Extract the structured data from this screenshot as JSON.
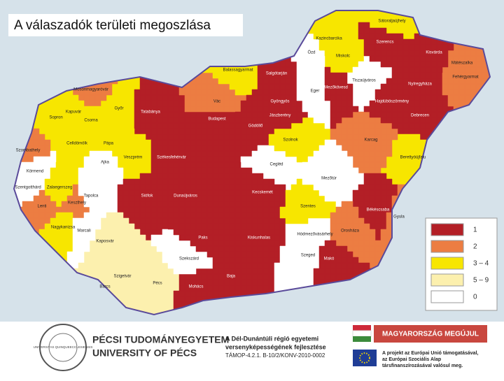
{
  "header": {
    "title": "A válaszadók területi megoszlása"
  },
  "legend": {
    "items": [
      {
        "label": "1",
        "color": "#b31f26"
      },
      {
        "label": "2",
        "color": "#ec7d42"
      },
      {
        "label": "3 – 4",
        "color": "#f7e600"
      },
      {
        "label": "5 – 9",
        "color": "#fcf0ae"
      },
      {
        "label": "0",
        "color": "#ffffff"
      }
    ]
  },
  "regions": [
    {
      "name": "Győr",
      "level": 2
    },
    {
      "name": "Mosonmagyaróvár",
      "level": 1
    },
    {
      "name": "Sopron",
      "level": 2
    },
    {
      "name": "Csorna",
      "level": 2
    },
    {
      "name": "Kapuvár",
      "level": 2
    },
    {
      "name": "Tatabánya",
      "level": 0
    },
    {
      "name": "Pápa",
      "level": 2
    },
    {
      "name": "Celldömölk",
      "level": 2
    },
    {
      "name": "Szombathely",
      "level": 1
    },
    {
      "name": "Körmend",
      "level": 4
    },
    {
      "name": "Szentgotthárd",
      "level": 4
    },
    {
      "name": "Zalaegerszeg",
      "level": 2
    },
    {
      "name": "Keszthely",
      "level": 1
    },
    {
      "name": "Lenti",
      "level": 1
    },
    {
      "name": "Nagykanizsa",
      "level": 2
    },
    {
      "name": "Veszprém",
      "level": 2
    },
    {
      "name": "Ajka",
      "level": 4
    },
    {
      "name": "Tapolca",
      "level": 4
    },
    {
      "name": "Székesfehérvár",
      "level": 0
    },
    {
      "name": "Siófok",
      "level": 0
    },
    {
      "name": "Kaposvár",
      "level": 3
    },
    {
      "name": "Marcali",
      "level": 4
    },
    {
      "name": "Barcs",
      "level": 3
    },
    {
      "name": "Szigetvár",
      "level": 3
    },
    {
      "name": "Pécs",
      "level": 3
    },
    {
      "name": "Mohács",
      "level": 0
    },
    {
      "name": "Szekszárd",
      "level": 4
    },
    {
      "name": "Paks",
      "level": 0
    },
    {
      "name": "Dunaújváros",
      "level": 0
    },
    {
      "name": "Budapest",
      "level": 0
    },
    {
      "name": "Vác",
      "level": 1
    },
    {
      "name": "Balassagyarmat",
      "level": 2
    },
    {
      "name": "Salgótarján",
      "level": 0
    },
    {
      "name": "Gödöllő",
      "level": 0
    },
    {
      "name": "Cegléd",
      "level": 4
    },
    {
      "name": "Kecskemét",
      "level": 0
    },
    {
      "name": "Kiskunhalas",
      "level": 0
    },
    {
      "name": "Baja",
      "level": 0
    },
    {
      "name": "Szeged",
      "level": 4
    },
    {
      "name": "Hódmezővásárhely",
      "level": 4
    },
    {
      "name": "Szentes",
      "level": 2
    },
    {
      "name": "Szolnok",
      "level": 2
    },
    {
      "name": "Jászberény",
      "level": 0
    },
    {
      "name": "Gyöngyös",
      "level": 0
    },
    {
      "name": "Eger",
      "level": 4
    },
    {
      "name": "Miskolc",
      "level": 2
    },
    {
      "name": "Ózd",
      "level": 4
    },
    {
      "name": "Sátoraljaújhely",
      "level": 2
    },
    {
      "name": "Kazincbarcika",
      "level": 2
    },
    {
      "name": "Tiszaújváros",
      "level": 4
    },
    {
      "name": "Nyíregyháza",
      "level": 0
    },
    {
      "name": "Mátészalka",
      "level": 1
    },
    {
      "name": "Debrecen",
      "level": 0
    },
    {
      "name": "Berettyóújfalu",
      "level": 2
    },
    {
      "name": "Karcag",
      "level": 1
    },
    {
      "name": "Mezőtúr",
      "level": 4
    },
    {
      "name": "Békéscsaba",
      "level": 0
    },
    {
      "name": "Gyula",
      "level": 1
    },
    {
      "name": "Orosháza",
      "level": 1
    },
    {
      "name": "Makó",
      "level": 0
    },
    {
      "name": "Mezőkövesd",
      "level": 0
    },
    {
      "name": "Hajdúböszörmény",
      "level": 0
    },
    {
      "name": "Fehérgyarmat",
      "level": 1
    },
    {
      "name": "Kisvárda",
      "level": 0
    },
    {
      "name": "Szerencs",
      "level": 0
    }
  ],
  "footer": {
    "seal": "UNIVERSITAS QUINQUEECCLESIENSIS",
    "university_hu": "PÉCSI TUDOMÁNYEGYETEM",
    "university_en": "UNIVERSITY OF PÉCS",
    "project": [
      "A Dél-Dunántúli régió egyetemi",
      "versenyképességének fejlesztése",
      "TÁMOP-4.2.1. B-10/2/KONV-2010-0002"
    ],
    "banner": "MAGYARORSZÁG MEGÚJUL",
    "eu": [
      "A projekt az Európai Unió támogatásával,",
      "az Európai Szociális Alap",
      "társfinanszírozásával valósul meg."
    ]
  }
}
